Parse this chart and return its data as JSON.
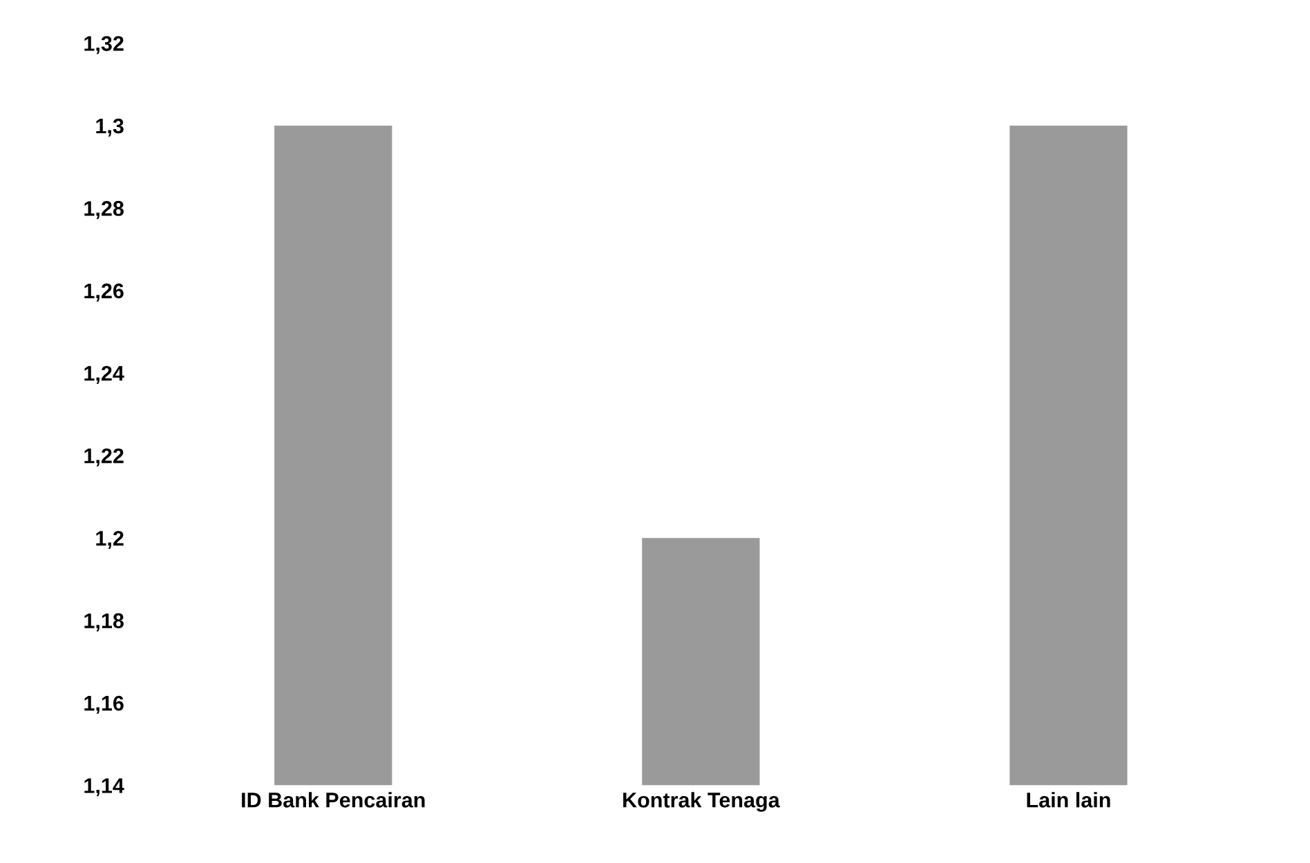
{
  "chart_data": {
    "type": "bar",
    "categories": [
      "ID Bank Pencairan",
      "Kontrak Tenaga",
      "Lain lain"
    ],
    "values": [
      1.3,
      1.2,
      1.3
    ],
    "color": "#9a9a9a",
    "ylim": [
      1.14,
      1.32
    ],
    "yticks": [
      {
        "value": 1.14,
        "label": "1,14"
      },
      {
        "value": 1.16,
        "label": "1,16"
      },
      {
        "value": 1.18,
        "label": "1,18"
      },
      {
        "value": 1.2,
        "label": "1,2"
      },
      {
        "value": 1.22,
        "label": "1,22"
      },
      {
        "value": 1.24,
        "label": "1,24"
      },
      {
        "value": 1.26,
        "label": "1,26"
      },
      {
        "value": 1.28,
        "label": "1,28"
      },
      {
        "value": 1.3,
        "label": "1,3"
      },
      {
        "value": 1.32,
        "label": "1,32"
      }
    ],
    "grid": false
  }
}
